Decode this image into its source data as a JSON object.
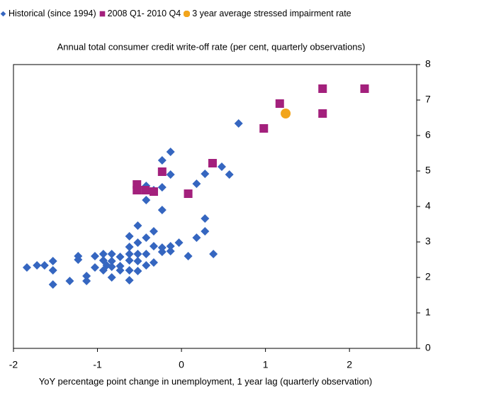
{
  "chart_data": {
    "type": "scatter",
    "title": "Annual total consumer credit write-off rate (per cent, quarterly observations)",
    "xlabel": "YoY percentage  point change in unemployment, 1 year lag (quarterly observation)",
    "xlim": [
      -2,
      2.8
    ],
    "xticks": [
      -2,
      -1,
      0,
      1,
      2
    ],
    "ylim": [
      0,
      8
    ],
    "yticks": [
      0,
      1,
      2,
      3,
      4,
      5,
      6,
      7,
      8
    ],
    "grid": false,
    "legend": "top",
    "series": [
      {
        "name": "Historical (since 1994)",
        "color": "#3566c0",
        "marker": "diamond",
        "x": [
          -1.84,
          -1.72,
          -1.63,
          -1.53,
          -1.53,
          -1.53,
          -1.33,
          -1.23,
          -1.23,
          -1.13,
          -1.13,
          -1.03,
          -1.03,
          -0.93,
          -0.93,
          -0.93,
          -0.89,
          -0.83,
          -0.83,
          -0.83,
          -0.83,
          -0.73,
          -0.73,
          -0.73,
          -0.62,
          -0.62,
          -0.62,
          -0.62,
          -0.62,
          -0.62,
          -0.52,
          -0.52,
          -0.52,
          -0.52,
          -0.52,
          -0.42,
          -0.42,
          -0.42,
          -0.42,
          -0.42,
          -0.33,
          -0.33,
          -0.33,
          -0.33,
          -0.23,
          -0.23,
          -0.23,
          -0.23,
          -0.23,
          -0.13,
          -0.13,
          -0.13,
          -0.13,
          -0.03,
          0.08,
          0.18,
          0.18,
          0.28,
          0.28,
          0.28,
          0.38,
          0.48,
          0.57,
          0.68
        ],
        "values": [
          2.28,
          2.34,
          2.34,
          2.46,
          2.2,
          1.8,
          1.9,
          2.6,
          2.5,
          2.04,
          1.9,
          2.6,
          2.28,
          2.66,
          2.48,
          2.2,
          2.34,
          2.66,
          2.46,
          2.3,
          2.0,
          2.58,
          2.32,
          2.2,
          2.86,
          2.66,
          2.48,
          2.2,
          1.92,
          3.16,
          3.46,
          2.98,
          2.66,
          2.46,
          2.18,
          3.12,
          2.66,
          2.34,
          4.18,
          4.58,
          3.3,
          2.88,
          2.42,
          4.46,
          3.9,
          4.54,
          5.3,
          2.84,
          2.72,
          5.54,
          4.9,
          2.88,
          2.74,
          2.98,
          2.6,
          3.12,
          4.64,
          3.3,
          3.66,
          4.92,
          2.66,
          5.12,
          4.9,
          6.34
        ]
      },
      {
        "name": "2008 Q1- 2010 Q4",
        "color": "#a3207c",
        "marker": "square",
        "x": [
          -0.53,
          -0.53,
          -0.43,
          -0.33,
          -0.23,
          0.08,
          0.37,
          0.98,
          1.17,
          1.68,
          1.68,
          2.18
        ],
        "values": [
          4.62,
          4.46,
          4.46,
          4.42,
          4.98,
          4.36,
          5.22,
          6.2,
          6.9,
          7.32,
          6.62,
          7.32
        ]
      },
      {
        "name": "3 year average stressed impairment rate",
        "color": "#f2a51c",
        "marker": "circle",
        "x": [
          1.24
        ],
        "values": [
          6.62
        ]
      }
    ]
  }
}
